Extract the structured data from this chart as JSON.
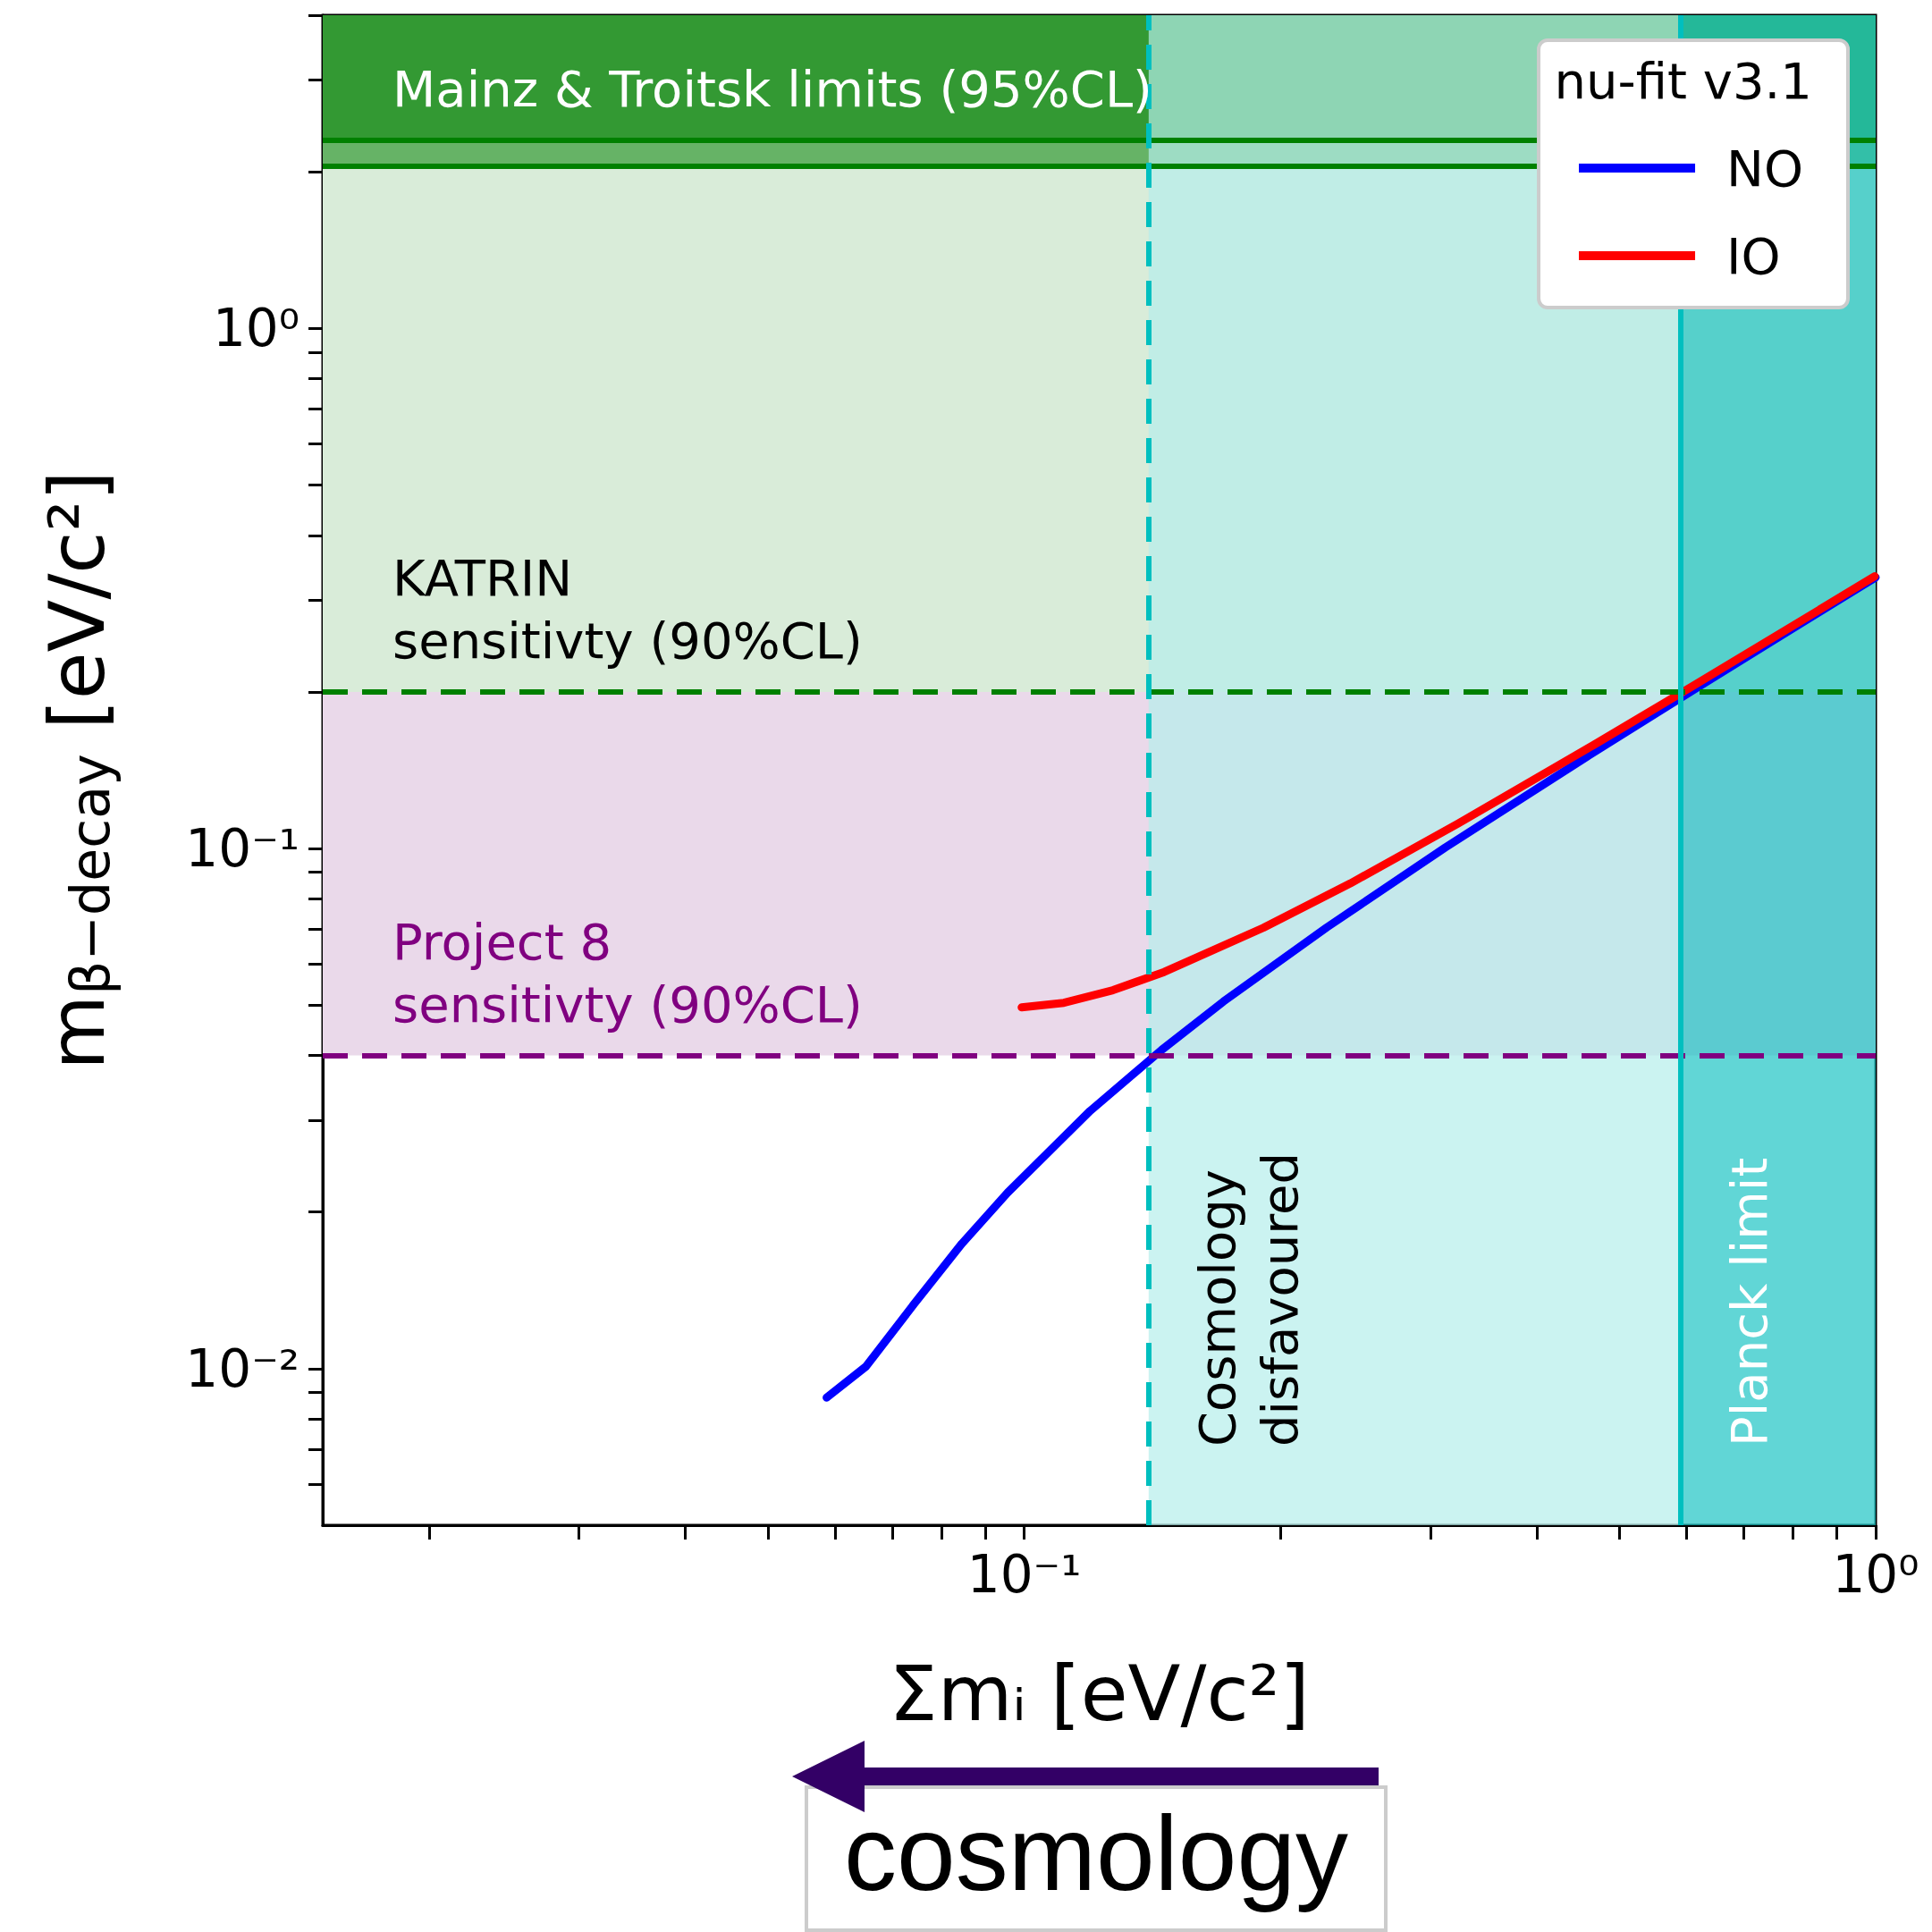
{
  "chart_data": {
    "type": "line",
    "xlabel": "Σmᵢ [eV/c²]",
    "ylabel": "m$_{β−decay}$ [eV/c²]",
    "legend_title": "nu-fit v3.1",
    "legend": "top right",
    "log": "xy",
    "line_style": "solid",
    "marker": "none",
    "xlim": [
      0.015,
      1
    ],
    "ylim": [
      0.005,
      4
    ],
    "xticks": [
      {
        "value": 0.02,
        "label": null
      },
      {
        "value": 0.03,
        "label": null
      },
      {
        "value": 0.04,
        "label": null
      },
      {
        "value": 0.05,
        "label": null
      },
      {
        "value": 0.06,
        "label": null
      },
      {
        "value": 0.07,
        "label": null
      },
      {
        "value": 0.08,
        "label": null
      },
      {
        "value": 0.09,
        "label": null
      },
      {
        "value": 0.1,
        "label": "10⁻¹"
      },
      {
        "value": 0.2,
        "label": null
      },
      {
        "value": 0.3,
        "label": null
      },
      {
        "value": 0.4,
        "label": null
      },
      {
        "value": 0.5,
        "label": null
      },
      {
        "value": 0.6,
        "label": null
      },
      {
        "value": 0.7,
        "label": null
      },
      {
        "value": 0.8,
        "label": null
      },
      {
        "value": 0.9,
        "label": null
      },
      {
        "value": 1,
        "label": "10⁰"
      }
    ],
    "yticks": [
      {
        "value": 0.006,
        "label": null
      },
      {
        "value": 0.007,
        "label": null
      },
      {
        "value": 0.008,
        "label": null
      },
      {
        "value": 0.009,
        "label": null
      },
      {
        "value": 0.01,
        "label": "10⁻²"
      },
      {
        "value": 0.02,
        "label": null
      },
      {
        "value": 0.03,
        "label": null
      },
      {
        "value": 0.04,
        "label": null
      },
      {
        "value": 0.05,
        "label": null
      },
      {
        "value": 0.06,
        "label": null
      },
      {
        "value": 0.07,
        "label": null
      },
      {
        "value": 0.08,
        "label": null
      },
      {
        "value": 0.09,
        "label": null
      },
      {
        "value": 0.1,
        "label": "10⁻¹"
      },
      {
        "value": 0.2,
        "label": null
      },
      {
        "value": 0.3,
        "label": null
      },
      {
        "value": 0.4,
        "label": null
      },
      {
        "value": 0.5,
        "label": null
      },
      {
        "value": 0.6,
        "label": null
      },
      {
        "value": 0.7,
        "label": null
      },
      {
        "value": 0.8,
        "label": null
      },
      {
        "value": 0.9,
        "label": null
      },
      {
        "value": 1,
        "label": "10⁰"
      },
      {
        "value": 2,
        "label": null
      },
      {
        "value": 3,
        "label": null
      },
      {
        "value": 4,
        "label": null
      }
    ],
    "series": [
      {
        "name": "NO",
        "color": "#0000ff",
        "x": [
          0.0586,
          0.0652,
          0.0742,
          0.0845,
          0.0956,
          0.1195,
          0.145,
          0.1714,
          0.2266,
          0.3122,
          0.4584,
          0.6064,
          0.7551,
          0.964,
          0.9999
        ],
        "values": [
          0.0088,
          0.0101,
          0.0133,
          0.0174,
          0.0218,
          0.0313,
          0.041,
          0.0508,
          0.0705,
          0.1004,
          0.1503,
          0.2002,
          0.2502,
          0.3201,
          0.3321
        ]
      },
      {
        "name": "IO",
        "color": "#ff0000",
        "x": [
          0.0993,
          0.1113,
          0.1271,
          0.146,
          0.1909,
          0.2416,
          0.3233,
          0.466,
          0.6122,
          0.7598,
          0.9677,
          0.9974
        ],
        "values": [
          0.0495,
          0.0505,
          0.0534,
          0.0579,
          0.0704,
          0.0857,
          0.1117,
          0.158,
          0.2061,
          0.2549,
          0.3238,
          0.3337
        ]
      }
    ],
    "bands": [
      {
        "axis": "y",
        "from": 0.04,
        "to": 0.2,
        "color": "#ead9ea"
      },
      {
        "axis": "y",
        "from": 0.2,
        "to": 2.05,
        "color": "#d9ecd9",
        "label": "KATRIN\nsensitivty (90%CL)"
      },
      {
        "axis": "y",
        "from": 2.05,
        "to": 2.3,
        "color": "#66b366"
      },
      {
        "axis": "y",
        "from": 2.3,
        "to": 4,
        "color": "#339933",
        "label": "Mainz & Troitsk limits (95%CL)"
      },
      {
        "axis": "x",
        "from": 0.14,
        "to": 0.59,
        "color": "#b5eeeb",
        "label": "Cosmology\ndisfavoured"
      },
      {
        "axis": "x",
        "from": 0.59,
        "to": 1,
        "color": "#1ec4c4",
        "label": "Planck limit"
      }
    ],
    "ref_lines": [
      {
        "axis": "y",
        "value": 0.2,
        "color": "#008000",
        "line_style": "dashed"
      },
      {
        "axis": "y",
        "value": 0.04,
        "color": "#800080",
        "line_style": "dashed",
        "label": "Project 8\nsensitivty (90%CL)"
      },
      {
        "axis": "y",
        "value": 2.05,
        "color": "#008000",
        "line_style": "solid"
      },
      {
        "axis": "y",
        "value": 2.3,
        "color": "#008000",
        "line_style": "solid"
      },
      {
        "axis": "x",
        "value": 0.14,
        "color": "#00bfbf",
        "line_style": "dashed"
      },
      {
        "axis": "x",
        "value": 0.59,
        "color": "#00bfbf",
        "line_style": "solid"
      }
    ],
    "annotations": [
      "cosmology"
    ]
  }
}
